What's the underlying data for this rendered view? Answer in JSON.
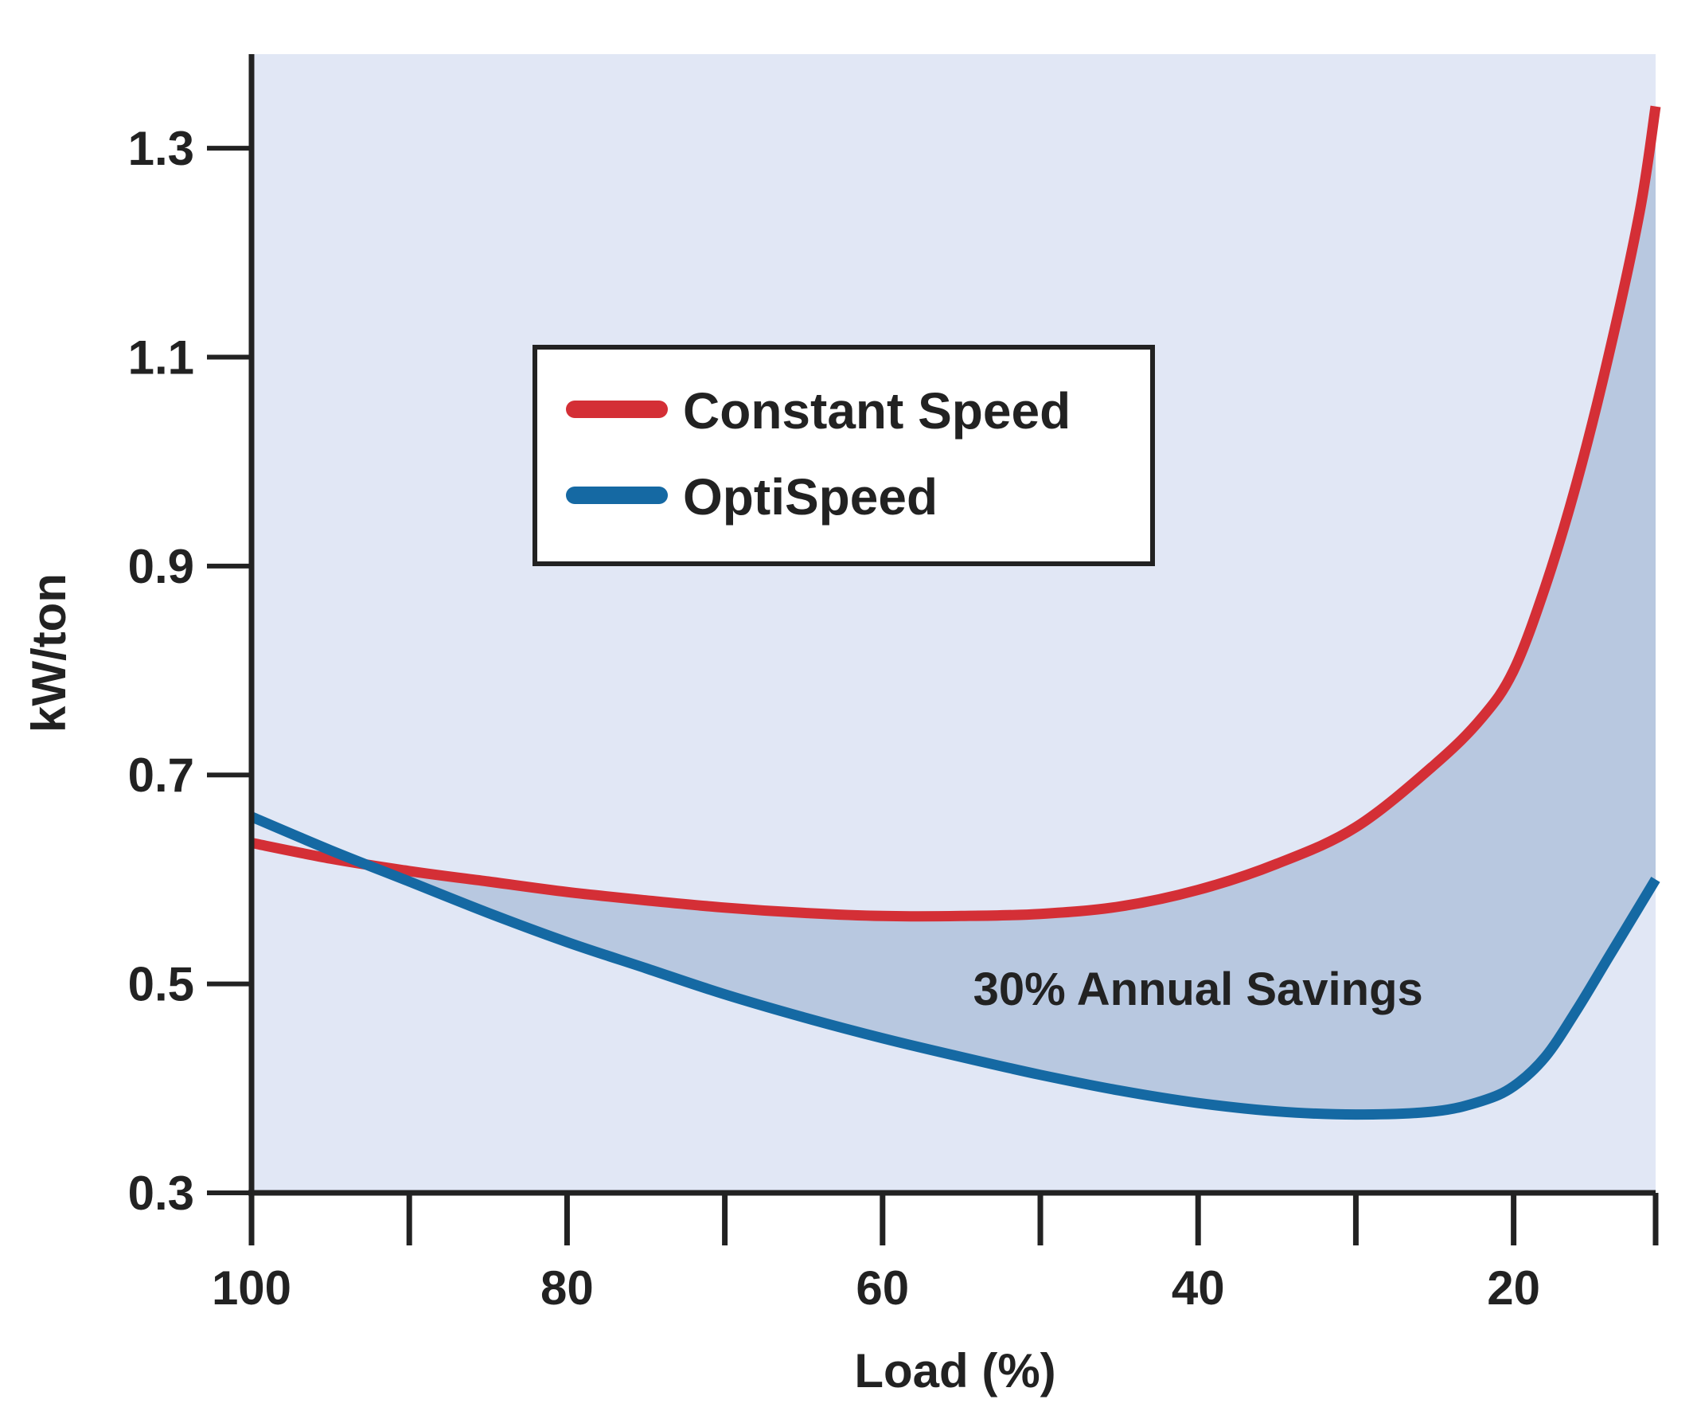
{
  "chart_data": {
    "type": "line",
    "title": "",
    "xlabel": "Load (%)",
    "ylabel": "kW/ton",
    "xlim": [
      100,
      11
    ],
    "ylim": [
      0.3,
      1.39
    ],
    "x_ticks": [
      100,
      90,
      80,
      70,
      60,
      50,
      40,
      30,
      20,
      11
    ],
    "x_tick_labels": [
      "100",
      "",
      "80",
      "",
      "60",
      "",
      "40",
      "",
      "20",
      ""
    ],
    "y_ticks": [
      0.3,
      0.5,
      0.7,
      0.9,
      1.1,
      1.3
    ],
    "y_tick_labels": [
      "0.3",
      "0.5",
      "0.7",
      "0.9",
      "1.1",
      "1.3"
    ],
    "grid": false,
    "legend_position": "upper-center",
    "series": [
      {
        "name": "Constant Speed",
        "color": "#d42f36",
        "x": [
          100,
          95,
          90,
          85,
          80,
          75,
          70,
          65,
          60,
          55,
          50,
          45,
          40,
          35,
          30,
          25,
          22,
          20,
          18,
          16,
          14,
          12,
          11
        ],
        "y": [
          0.635,
          0.62,
          0.608,
          0.598,
          0.588,
          0.58,
          0.573,
          0.568,
          0.565,
          0.565,
          0.567,
          0.574,
          0.59,
          0.615,
          0.65,
          0.71,
          0.755,
          0.8,
          0.88,
          0.98,
          1.1,
          1.24,
          1.34
        ]
      },
      {
        "name": "OptiSpeed",
        "color": "#1569a3",
        "x": [
          100,
          95,
          90,
          85,
          80,
          75,
          70,
          65,
          60,
          55,
          50,
          45,
          40,
          35,
          30,
          25,
          22,
          20,
          18,
          16,
          14,
          12,
          11
        ],
        "y": [
          0.66,
          0.628,
          0.598,
          0.568,
          0.54,
          0.515,
          0.49,
          0.468,
          0.448,
          0.43,
          0.413,
          0.398,
          0.386,
          0.378,
          0.375,
          0.378,
          0.388,
          0.402,
          0.43,
          0.475,
          0.525,
          0.575,
          0.6
        ]
      }
    ],
    "annotations": [
      {
        "text": "30% Annual Savings",
        "x": 40,
        "y": 0.495
      }
    ]
  },
  "colors": {
    "background": "#e1e7f5",
    "savings_fill": "#b8c8e0",
    "axis": "#222222"
  }
}
